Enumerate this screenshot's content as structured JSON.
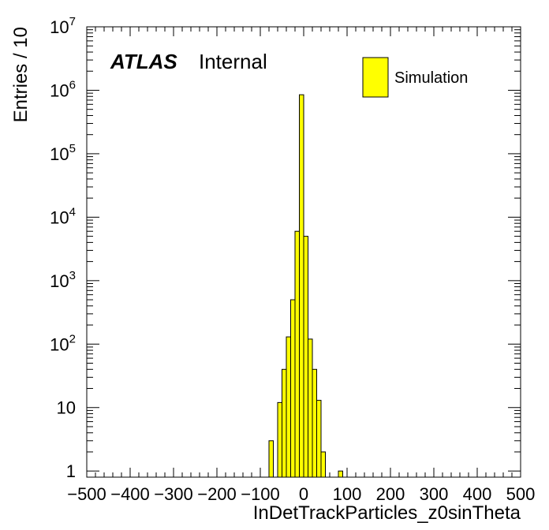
{
  "chart_data": {
    "type": "bar",
    "histogram": true,
    "bin_width": 10,
    "xlim": [
      -500,
      500
    ],
    "ylim": [
      0.8,
      10000000
    ],
    "yscale": "log",
    "xlabel": "InDetTrackParticles_z0sinTheta",
    "ylabel": "Entries / 10",
    "x_tick_labels": [
      "−500",
      "−400",
      "−300",
      "−200",
      "−100",
      "0",
      "100",
      "200",
      "300",
      "400",
      "500"
    ],
    "x_tick_values": [
      -500,
      -400,
      -300,
      -200,
      -100,
      0,
      100,
      200,
      300,
      400,
      500
    ],
    "y_tick_labels": [
      {
        "value": 1,
        "base": "1",
        "exp": ""
      },
      {
        "value": 10,
        "base": "10",
        "exp": ""
      },
      {
        "value": 100,
        "base": "10",
        "exp": "2"
      },
      {
        "value": 1000,
        "base": "10",
        "exp": "3"
      },
      {
        "value": 10000,
        "base": "10",
        "exp": "4"
      },
      {
        "value": 100000,
        "base": "10",
        "exp": "5"
      },
      {
        "value": 1000000,
        "base": "10",
        "exp": "6"
      },
      {
        "value": 10000000,
        "base": "10",
        "exp": "7"
      }
    ],
    "bins": [
      {
        "low": -80,
        "high": -70,
        "value": 3
      },
      {
        "low": -70,
        "high": -60,
        "value": 0
      },
      {
        "low": -60,
        "high": -50,
        "value": 12
      },
      {
        "low": -50,
        "high": -40,
        "value": 40
      },
      {
        "low": -40,
        "high": -30,
        "value": 130
      },
      {
        "low": -30,
        "high": -20,
        "value": 500
      },
      {
        "low": -20,
        "high": -10,
        "value": 6000
      },
      {
        "low": -10,
        "high": 0,
        "value": 850000
      },
      {
        "low": 0,
        "high": 10,
        "value": 5000
      },
      {
        "low": 10,
        "high": 20,
        "value": 120
      },
      {
        "low": 20,
        "high": 30,
        "value": 40
      },
      {
        "low": 30,
        "high": 40,
        "value": 13
      },
      {
        "low": 40,
        "high": 50,
        "value": 2
      },
      {
        "low": 50,
        "high": 60,
        "value": 0
      },
      {
        "low": 60,
        "high": 70,
        "value": 0
      },
      {
        "low": 70,
        "high": 80,
        "value": 0
      },
      {
        "low": 80,
        "high": 90,
        "value": 1
      },
      {
        "low": 90,
        "high": 100,
        "value": 0
      }
    ],
    "series": [
      {
        "name": "Simulation",
        "color": "#ffff00"
      }
    ],
    "legend_position": "top-right",
    "grid": false
  },
  "labels": {
    "atlas": "ATLAS",
    "internal": "Internal",
    "legend_entry": "Simulation"
  },
  "colors": {
    "fill": "#ffff00",
    "line": "#000000"
  }
}
